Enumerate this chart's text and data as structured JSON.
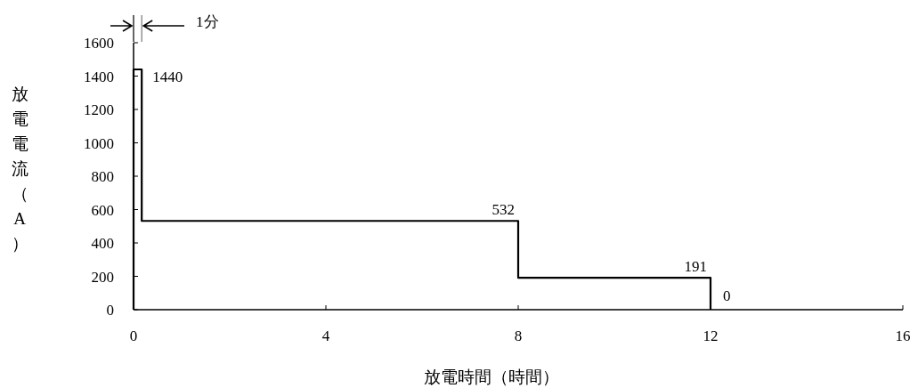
{
  "chart_data": {
    "type": "line",
    "xlabel": "放電時間（時間）",
    "ylabel": "放電電流（A）",
    "x": [
      0,
      0,
      0.17,
      0.17,
      8,
      8,
      12,
      12
    ],
    "series": [
      {
        "color": "#000000",
        "values": [
          0,
          1440,
          1440,
          532,
          532,
          191,
          191,
          0
        ],
        "value_labels": [
          null,
          null,
          "1440",
          null,
          "532",
          null,
          "191",
          "0"
        ]
      }
    ],
    "xlim": [
      0,
      16
    ],
    "xticks": [
      0,
      4,
      8,
      12,
      16
    ],
    "ylim": [
      0,
      1600
    ],
    "yticks": [
      0,
      200,
      400,
      600,
      800,
      1000,
      1200,
      1400,
      1600
    ],
    "annotations": [
      "1分"
    ]
  }
}
